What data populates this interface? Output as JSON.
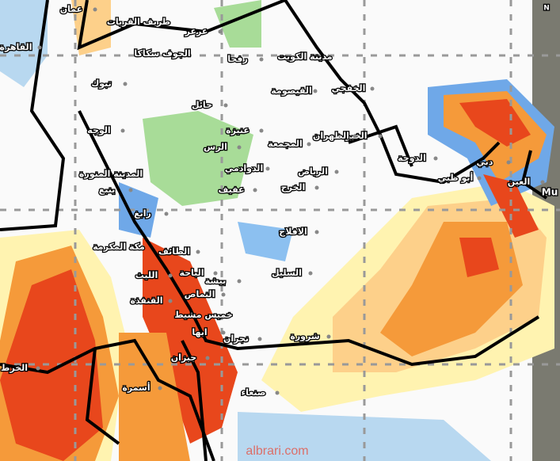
{
  "map": {
    "labels": [
      "عمان",
      "طريف القريات",
      "عرعر",
      "القاهرة",
      "الجوف سكاكا",
      "رفحا",
      "مدينة الكويت",
      "تبوك",
      "القيصومة",
      "الخفجي",
      "حائل",
      "عنيزة",
      "الوجه",
      "المجمعة",
      "الرس",
      "الخبر",
      "الظهران",
      "الدوحة",
      "دبي",
      "الدوادمي",
      "الرياض",
      "المدينة المنورة",
      "أبو ظبي",
      "العين",
      "ينبع",
      "الخرج",
      "عفيف",
      "رابغ",
      "الافلاج",
      "مكة المكرمة",
      "الطائف",
      "الباحة",
      "الليث",
      "السليل",
      "بيشة",
      "النماص",
      "القنفذة",
      "خميس مشيط",
      "شرورة",
      "نجران",
      "ابها",
      "الخرط",
      "جيزان",
      "أسمرة",
      "صنعاء"
    ],
    "corner_label": "Mu",
    "compass": "N",
    "watermark": "albrari.com"
  }
}
